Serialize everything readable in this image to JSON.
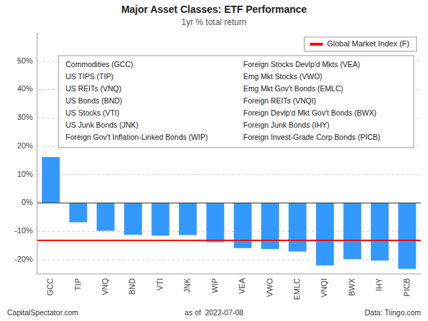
{
  "chart_data": {
    "type": "bar",
    "title": "Major Asset Classes: ETF Performance",
    "subtitle": "1yr % total return",
    "categories": [
      "GCC",
      "TIP",
      "VNQ",
      "BND",
      "VTI",
      "JNK",
      "WIP",
      "VEA",
      "VWO",
      "EMLC",
      "VNQI",
      "BWX",
      "IHY",
      "PICB"
    ],
    "values": [
      16.2,
      -6.8,
      -9.8,
      -11.2,
      -11.5,
      -11.3,
      -13.8,
      -15.9,
      -16.2,
      -17.1,
      -22.0,
      -19.8,
      -20.3,
      -23.2
    ],
    "color": "#3399FF",
    "reference_lines": [
      {
        "value": -13.2,
        "label": "Global Market Index (F)",
        "color": "#FF0000"
      }
    ],
    "ylim": [
      -25,
      60
    ],
    "yticks": [
      {
        "value": -20,
        "label": "-20%"
      },
      {
        "value": -10,
        "label": "-10%"
      },
      {
        "value": 0,
        "label": "0%"
      },
      {
        "value": 10,
        "label": "10%"
      },
      {
        "value": 20,
        "label": "20%"
      },
      {
        "value": 30,
        "label": "30%"
      },
      {
        "value": 40,
        "label": "40%"
      },
      {
        "value": 50,
        "label": "50%"
      }
    ],
    "grid": true,
    "legend": "upper right",
    "annotations": [
      "Commodities (GCC)",
      "US TIPS (TIP)",
      "US REITs (VNQ)",
      "US Bonds (BND)",
      "US Stocks (VTI)",
      "US Junk Bonds (JNK)",
      "Foreign Gov't Inflation-Linked Bonds (WIP)",
      "Foreign Stocks Devlp'd Mkts (VEA)",
      "Emg Mkt Stocks (VWO)",
      "Emg Mkt Gov't Bonds (EMLC)",
      "Foreign REITs (VNQI)",
      "Foreign Devlp'd Mkt Gov't Bonds (BWX)",
      "Foreign Junk Bonds (IHY)",
      "Foreign Invest-Grade Corp Bonds (PICB)"
    ],
    "footer": [
      "CapitalSpectator.com",
      "as of  2022-07-08",
      "Data: Tiingo.com"
    ]
  }
}
